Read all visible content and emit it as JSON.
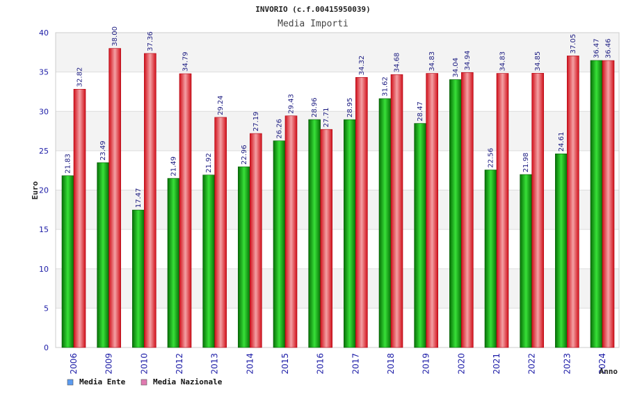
{
  "chart_data": {
    "type": "bar",
    "title": "INVORIO (c.f.00415950039)",
    "subtitle": "Media Importi",
    "xlabel": "Anno",
    "ylabel": "Euro",
    "ylim": [
      0,
      40
    ],
    "yticks": [
      0,
      5,
      10,
      15,
      20,
      25,
      30,
      35,
      40
    ],
    "grid": true,
    "legend": "bottom-left",
    "categories": [
      "2006",
      "2009",
      "2010",
      "2012",
      "2013",
      "2014",
      "2015",
      "2016",
      "2017",
      "2018",
      "2019",
      "2020",
      "2021",
      "2022",
      "2023",
      "2024"
    ],
    "series": [
      {
        "name": "Media Ente",
        "bar_color": "#0a9a0a",
        "legend_color": "#5b9bf0",
        "values": [
          21.83,
          23.49,
          17.47,
          21.49,
          21.92,
          22.96,
          26.26,
          28.96,
          28.95,
          31.62,
          28.47,
          34.04,
          22.56,
          21.98,
          24.61,
          36.47
        ],
        "labels": [
          "21.83",
          "23.49",
          "17.47",
          "21.49",
          "21.92",
          "22.96",
          "26.26",
          "28.96",
          "28.95",
          "31.62",
          "28.47",
          "34.04",
          "22.56",
          "21.98",
          "24.61",
          "36.47"
        ]
      },
      {
        "name": "Media Nazionale",
        "bar_color": "#e8202a",
        "legend_color": "#e07ab0",
        "values": [
          32.82,
          38.0,
          37.36,
          34.79,
          29.24,
          27.19,
          29.43,
          27.71,
          34.32,
          34.68,
          34.83,
          34.94,
          34.83,
          34.85,
          37.05,
          36.46
        ],
        "labels": [
          "32.82",
          "38.00",
          "37.36",
          "34.79",
          "29.24",
          "27.19",
          "29.43",
          "27.71",
          "34.32",
          "34.68",
          "34.83",
          "34.94",
          "34.83",
          "34.85",
          "37.05",
          "36.46"
        ]
      }
    ]
  }
}
